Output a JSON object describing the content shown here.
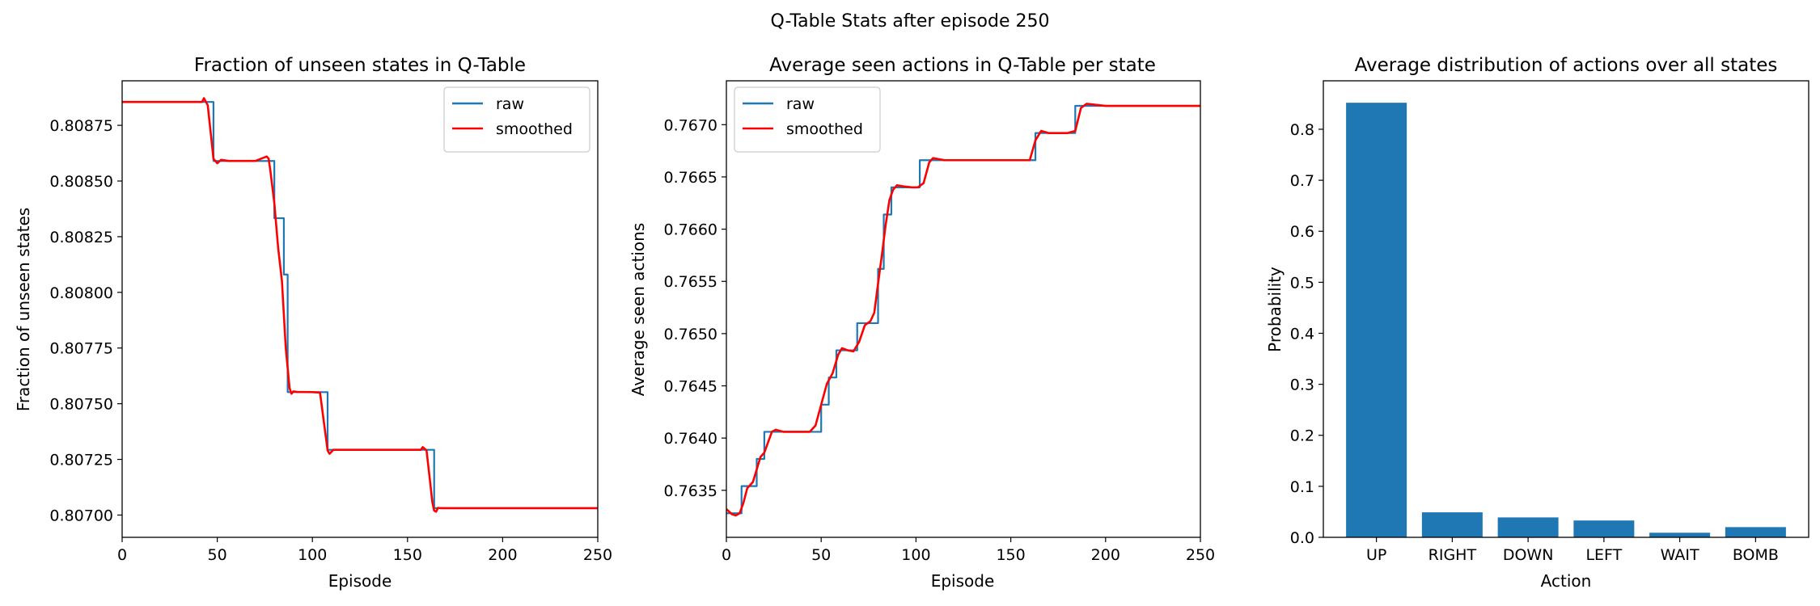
{
  "figure": {
    "suptitle": "Q-Table Stats after episode 250"
  },
  "colors": {
    "raw": "#1f77b4",
    "smoothed": "#ff0000",
    "bar": "#1f77b4"
  },
  "chart_data": [
    {
      "type": "line",
      "title": "Fraction of unseen states in Q-Table",
      "xlabel": "Episode",
      "ylabel": "Fraction of unseen states",
      "xlim": [
        0,
        250
      ],
      "ylim": [
        0.8069,
        0.80895
      ],
      "xticks": [
        "0",
        "50",
        "100",
        "150",
        "200",
        "250"
      ],
      "yticks": [
        "0.80700",
        "0.80725",
        "0.80750",
        "0.80775",
        "0.80800",
        "0.80825",
        "0.80850",
        "0.80875"
      ],
      "legend_position": "top-right",
      "series": [
        {
          "name": "raw",
          "kind": "step",
          "x": [
            0,
            47,
            48,
            79,
            80,
            84,
            85,
            86,
            87,
            88,
            107,
            108,
            163,
            164,
            250
          ],
          "y": [
            0.808855,
            0.808855,
            0.80859,
            0.80859,
            0.808333,
            0.808333,
            0.80808,
            0.80808,
            0.807552,
            0.807552,
            0.807552,
            0.807293,
            0.807293,
            0.807031,
            0.807031
          ]
        },
        {
          "name": "smoothed",
          "kind": "line",
          "x": [
            0,
            42,
            43,
            45,
            47,
            48,
            50,
            52,
            56,
            70,
            76,
            77,
            78,
            80,
            82,
            84,
            86,
            88,
            89,
            90,
            92,
            100,
            104,
            106,
            108,
            109,
            111,
            140,
            157,
            158,
            160,
            162,
            163,
            164,
            165,
            166,
            168,
            250
          ],
          "y": [
            0.808855,
            0.808855,
            0.808872,
            0.80884,
            0.80868,
            0.8086,
            0.80858,
            0.808595,
            0.80859,
            0.80859,
            0.80861,
            0.8086,
            0.80854,
            0.8084,
            0.8082,
            0.80805,
            0.80775,
            0.80757,
            0.807545,
            0.807555,
            0.807553,
            0.807552,
            0.80755,
            0.80742,
            0.80729,
            0.807275,
            0.807293,
            0.807293,
            0.807293,
            0.807305,
            0.80729,
            0.80714,
            0.80706,
            0.80702,
            0.807015,
            0.807032,
            0.807031,
            0.807031
          ]
        }
      ]
    },
    {
      "type": "line",
      "title": "Average seen actions in Q-Table per state",
      "xlabel": "Episode",
      "ylabel": "Average seen actions",
      "xlim": [
        0,
        250
      ],
      "ylim": [
        0.76305,
        0.76742
      ],
      "xticks": [
        "0",
        "50",
        "100",
        "150",
        "200",
        "250"
      ],
      "yticks": [
        "0.7635",
        "0.7640",
        "0.7645",
        "0.7650",
        "0.7655",
        "0.7660",
        "0.7665",
        "0.7670"
      ],
      "legend_position": "top-left",
      "series": [
        {
          "name": "raw",
          "kind": "step",
          "x": [
            0,
            7,
            8,
            15,
            16,
            19,
            20,
            24,
            25,
            49,
            50,
            53,
            54,
            57,
            58,
            60,
            61,
            68,
            69,
            72,
            73,
            79,
            80,
            82,
            83,
            86,
            87,
            89,
            90,
            101,
            102,
            105,
            106,
            162,
            163,
            183,
            184,
            250
          ],
          "y": [
            0.76328,
            0.76328,
            0.76354,
            0.76354,
            0.7638,
            0.7638,
            0.76406,
            0.76406,
            0.76406,
            0.76406,
            0.76432,
            0.76432,
            0.76458,
            0.76458,
            0.76484,
            0.76484,
            0.76484,
            0.76484,
            0.7651,
            0.7651,
            0.7651,
            0.7651,
            0.76562,
            0.76562,
            0.76614,
            0.76614,
            0.7664,
            0.7664,
            0.7664,
            0.7664,
            0.76666,
            0.76666,
            0.76666,
            0.76666,
            0.76692,
            0.76692,
            0.76718,
            0.76718
          ]
        },
        {
          "name": "smoothed",
          "kind": "line",
          "x": [
            0,
            3,
            5,
            7,
            9,
            11,
            14,
            16,
            18,
            20,
            22,
            24,
            26,
            30,
            44,
            47,
            50,
            53,
            56,
            59,
            61,
            64,
            67,
            70,
            73,
            76,
            78,
            80,
            82,
            84,
            86,
            88,
            90,
            93,
            98,
            101,
            104,
            107,
            109,
            115,
            155,
            160,
            163,
            166,
            170,
            180,
            184,
            187,
            190,
            200,
            250
          ],
          "y": [
            0.76332,
            0.76327,
            0.76326,
            0.76328,
            0.76338,
            0.76352,
            0.76358,
            0.7637,
            0.76382,
            0.76386,
            0.76396,
            0.76406,
            0.76408,
            0.76406,
            0.76406,
            0.76412,
            0.76432,
            0.76452,
            0.76462,
            0.7648,
            0.76486,
            0.76484,
            0.76483,
            0.76492,
            0.76508,
            0.76512,
            0.7652,
            0.76548,
            0.76575,
            0.76604,
            0.76628,
            0.76638,
            0.76642,
            0.76641,
            0.7664,
            0.7664,
            0.76644,
            0.76664,
            0.76668,
            0.76666,
            0.76666,
            0.76666,
            0.76685,
            0.76694,
            0.76692,
            0.76692,
            0.76694,
            0.76716,
            0.7672,
            0.76718,
            0.76718
          ]
        }
      ]
    },
    {
      "type": "bar",
      "title": "Average distribution of actions over all states",
      "xlabel": "Action",
      "ylabel": "Probability",
      "categories": [
        "UP",
        "RIGHT",
        "DOWN",
        "LEFT",
        "WAIT",
        "BOMB"
      ],
      "values": [
        0.852,
        0.049,
        0.039,
        0.033,
        0.009,
        0.02
      ],
      "ylim": [
        0,
        0.895
      ],
      "yticks": [
        "0.0",
        "0.1",
        "0.2",
        "0.3",
        "0.4",
        "0.5",
        "0.6",
        "0.7",
        "0.8"
      ]
    }
  ]
}
